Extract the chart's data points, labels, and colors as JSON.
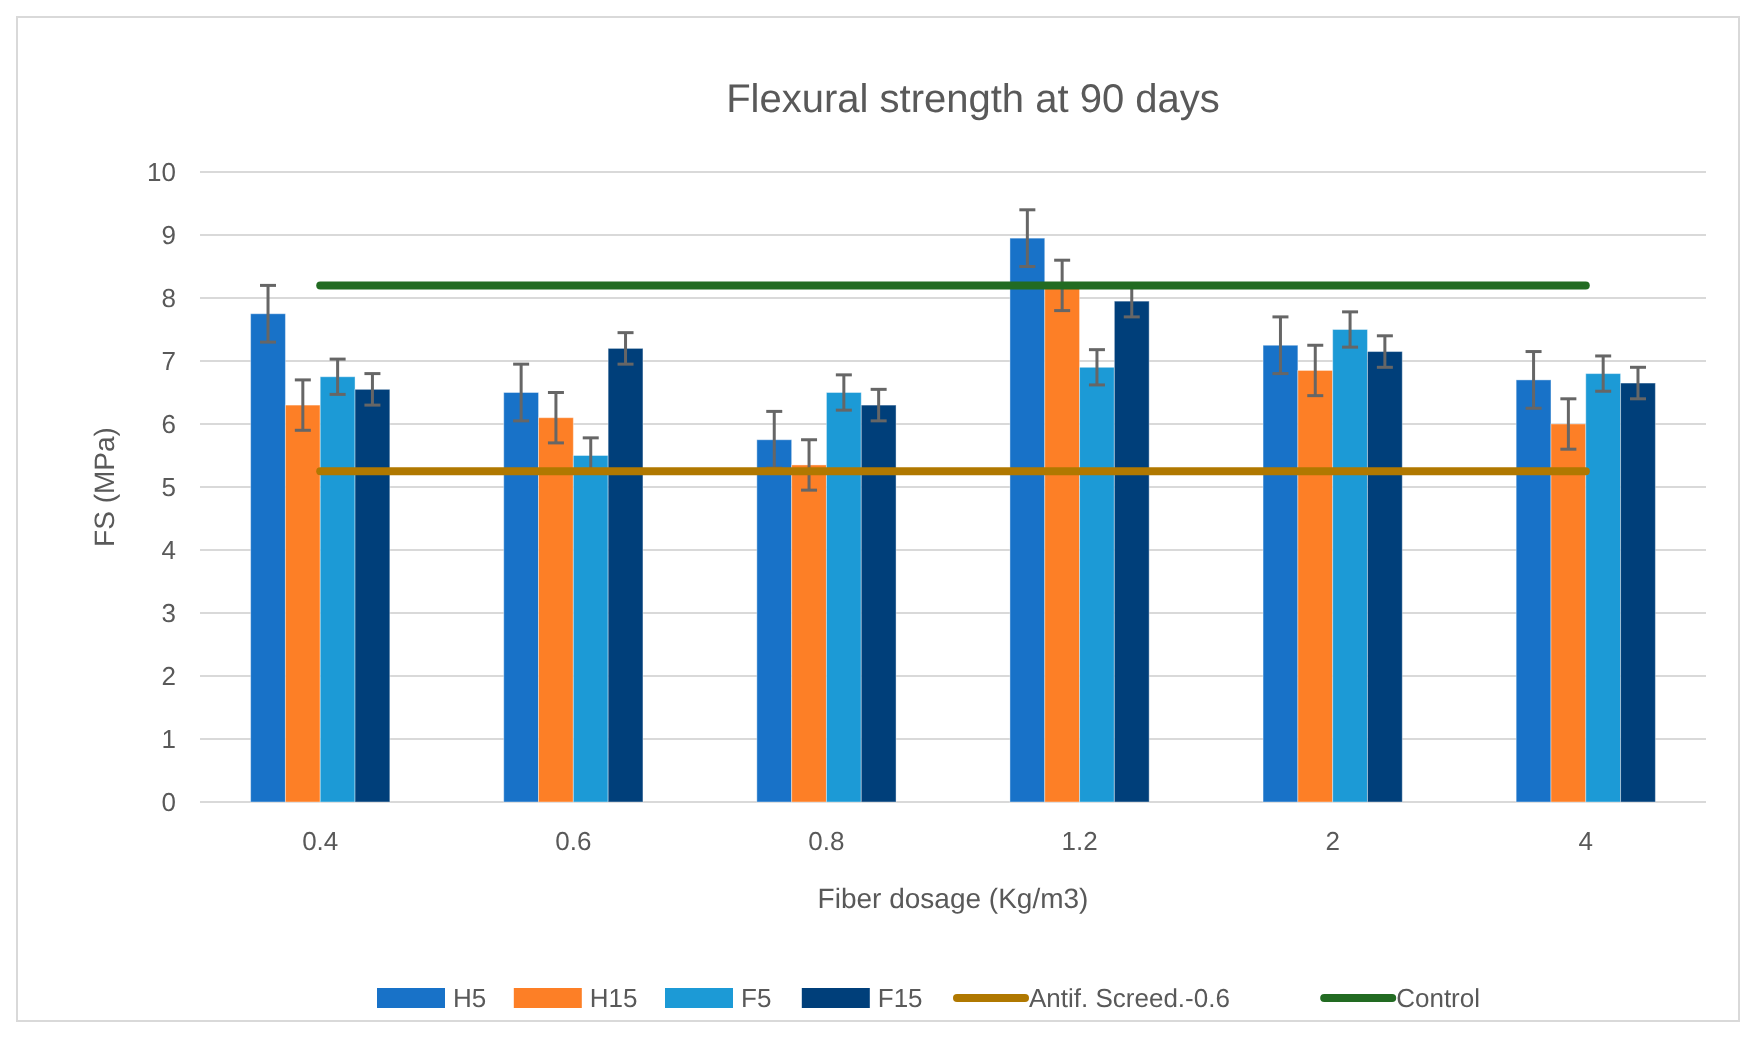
{
  "chart_data": {
    "type": "bar",
    "title": "Flexural strength at 90 days",
    "xlabel": "Fiber dosage (Kg/m3)",
    "ylabel": "FS (MPa)",
    "categories": [
      "0.4",
      "0.6",
      "0.8",
      "1.2",
      "2",
      "4"
    ],
    "series": [
      {
        "name": "H5",
        "color": "#1872c8",
        "values": [
          7.75,
          6.5,
          5.75,
          8.95,
          7.25,
          6.7
        ],
        "errors": [
          0.45,
          0.45,
          0.45,
          0.45,
          0.45,
          0.45
        ]
      },
      {
        "name": "H15",
        "color": "#fd7f26",
        "values": [
          6.3,
          6.1,
          5.35,
          8.2,
          6.85,
          6.0
        ],
        "errors": [
          0.4,
          0.4,
          0.4,
          0.4,
          0.4,
          0.4
        ]
      },
      {
        "name": "F5",
        "color": "#1c9ad6",
        "values": [
          6.75,
          5.5,
          6.5,
          6.9,
          7.5,
          6.8
        ],
        "errors": [
          0.28,
          0.28,
          0.28,
          0.28,
          0.28,
          0.28
        ]
      },
      {
        "name": "F15",
        "color": "#003f7a",
        "values": [
          6.55,
          7.2,
          6.3,
          7.95,
          7.15,
          6.65
        ],
        "errors": [
          0.25,
          0.25,
          0.25,
          0.25,
          0.25,
          0.25
        ]
      },
      {
        "name": "Antif. Screed.-0.6",
        "type": "line",
        "color": "#b07800",
        "values": [
          5.25,
          5.25,
          5.25,
          5.25,
          5.25,
          5.25
        ]
      },
      {
        "name": "Control",
        "type": "line",
        "color": "#226b22",
        "values": [
          8.2,
          8.2,
          8.2,
          8.2,
          8.2,
          8.2
        ]
      }
    ],
    "ylim": [
      0,
      10
    ],
    "yticks": [
      0,
      1,
      2,
      3,
      4,
      5,
      6,
      7,
      8,
      9,
      10
    ],
    "grid": "y",
    "legend": "bottom"
  }
}
